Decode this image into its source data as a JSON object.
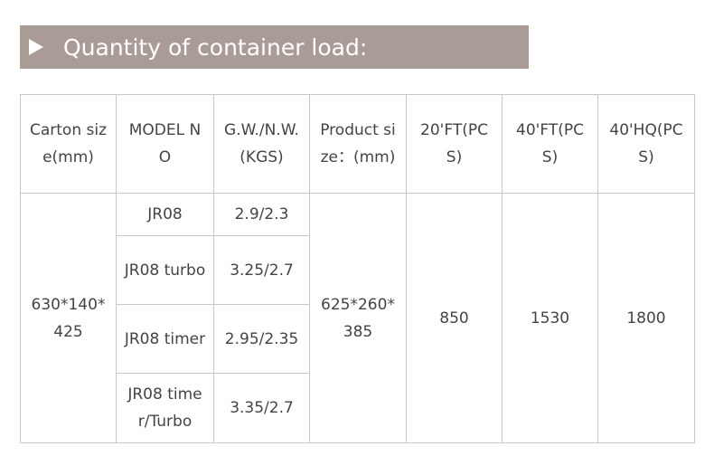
{
  "header": {
    "title": "Quantity of container load:"
  },
  "table": {
    "columns": [
      "Carton size(mm)",
      "MODEL NO",
      "G.W./N.W.(KGS)",
      "Product size：(mm)",
      "20'FT(PCS)",
      "40'FT(PCS)",
      "40'HQ(PCS)"
    ],
    "carton_size": "630*140*425",
    "models": [
      {
        "model": "JR08",
        "weight": "2.9/2.3"
      },
      {
        "model": "JR08 turbo",
        "weight": "3.25/2.7"
      },
      {
        "model": "JR08 timer",
        "weight": "2.95/2.35"
      },
      {
        "model": "JR08 timer/Turbo",
        "weight": "3.35/2.7"
      }
    ],
    "product_size": "625*260*385",
    "qty_20ft": "850",
    "qty_40ft": "1530",
    "qty_40hq": "1800"
  }
}
